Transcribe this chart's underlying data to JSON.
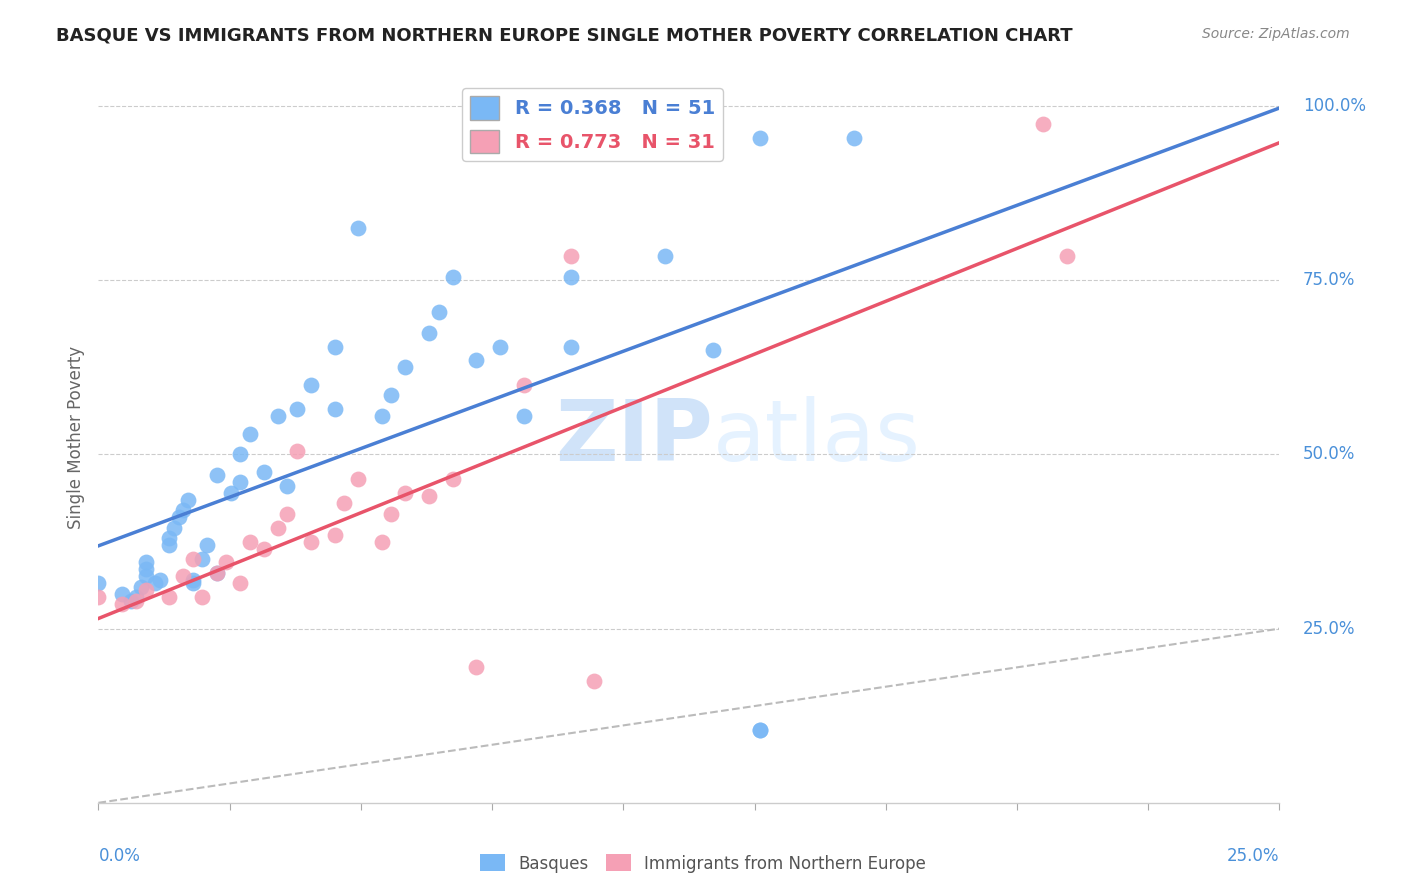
{
  "title": "BASQUE VS IMMIGRANTS FROM NORTHERN EUROPE SINGLE MOTHER POVERTY CORRELATION CHART",
  "source": "Source: ZipAtlas.com",
  "ylabel": "Single Mother Poverty",
  "xlim": [
    0.0,
    0.25
  ],
  "ylim": [
    0.0,
    1.05
  ],
  "legend1_r": "0.368",
  "legend1_n": "51",
  "legend2_r": "0.773",
  "legend2_n": "31",
  "blue_color": "#7ab8f5",
  "pink_color": "#f5a0b5",
  "blue_line_color": "#4a7fd4",
  "pink_line_color": "#e8546a",
  "watermark_zip": "ZIP",
  "watermark_atlas": "atlas",
  "basques_x": [
    0.0,
    0.005,
    0.007,
    0.008,
    0.009,
    0.01,
    0.01,
    0.01,
    0.012,
    0.013,
    0.015,
    0.015,
    0.016,
    0.017,
    0.018,
    0.019,
    0.02,
    0.02,
    0.022,
    0.023,
    0.025,
    0.025,
    0.028,
    0.03,
    0.03,
    0.032,
    0.035,
    0.038,
    0.04,
    0.042,
    0.045,
    0.05,
    0.05,
    0.055,
    0.06,
    0.062,
    0.065,
    0.07,
    0.072,
    0.075,
    0.08,
    0.085,
    0.09,
    0.1,
    0.1,
    0.12,
    0.13,
    0.14,
    0.14,
    0.14,
    0.16
  ],
  "basques_y": [
    0.315,
    0.3,
    0.29,
    0.295,
    0.31,
    0.325,
    0.335,
    0.345,
    0.315,
    0.32,
    0.37,
    0.38,
    0.395,
    0.41,
    0.42,
    0.435,
    0.315,
    0.32,
    0.35,
    0.37,
    0.33,
    0.47,
    0.445,
    0.46,
    0.5,
    0.53,
    0.475,
    0.555,
    0.455,
    0.565,
    0.6,
    0.565,
    0.655,
    0.825,
    0.555,
    0.585,
    0.625,
    0.675,
    0.705,
    0.755,
    0.635,
    0.655,
    0.555,
    0.655,
    0.755,
    0.785,
    0.65,
    0.105,
    0.105,
    0.955,
    0.955
  ],
  "pink_x": [
    0.0,
    0.005,
    0.008,
    0.01,
    0.015,
    0.018,
    0.02,
    0.022,
    0.025,
    0.027,
    0.03,
    0.032,
    0.035,
    0.038,
    0.04,
    0.042,
    0.045,
    0.05,
    0.052,
    0.055,
    0.06,
    0.062,
    0.065,
    0.07,
    0.075,
    0.08,
    0.09,
    0.1,
    0.105,
    0.2,
    0.205
  ],
  "pink_y": [
    0.295,
    0.285,
    0.29,
    0.305,
    0.295,
    0.325,
    0.35,
    0.295,
    0.33,
    0.345,
    0.315,
    0.375,
    0.365,
    0.395,
    0.415,
    0.505,
    0.375,
    0.385,
    0.43,
    0.465,
    0.375,
    0.415,
    0.445,
    0.44,
    0.465,
    0.195,
    0.6,
    0.785,
    0.175,
    0.975,
    0.785
  ]
}
